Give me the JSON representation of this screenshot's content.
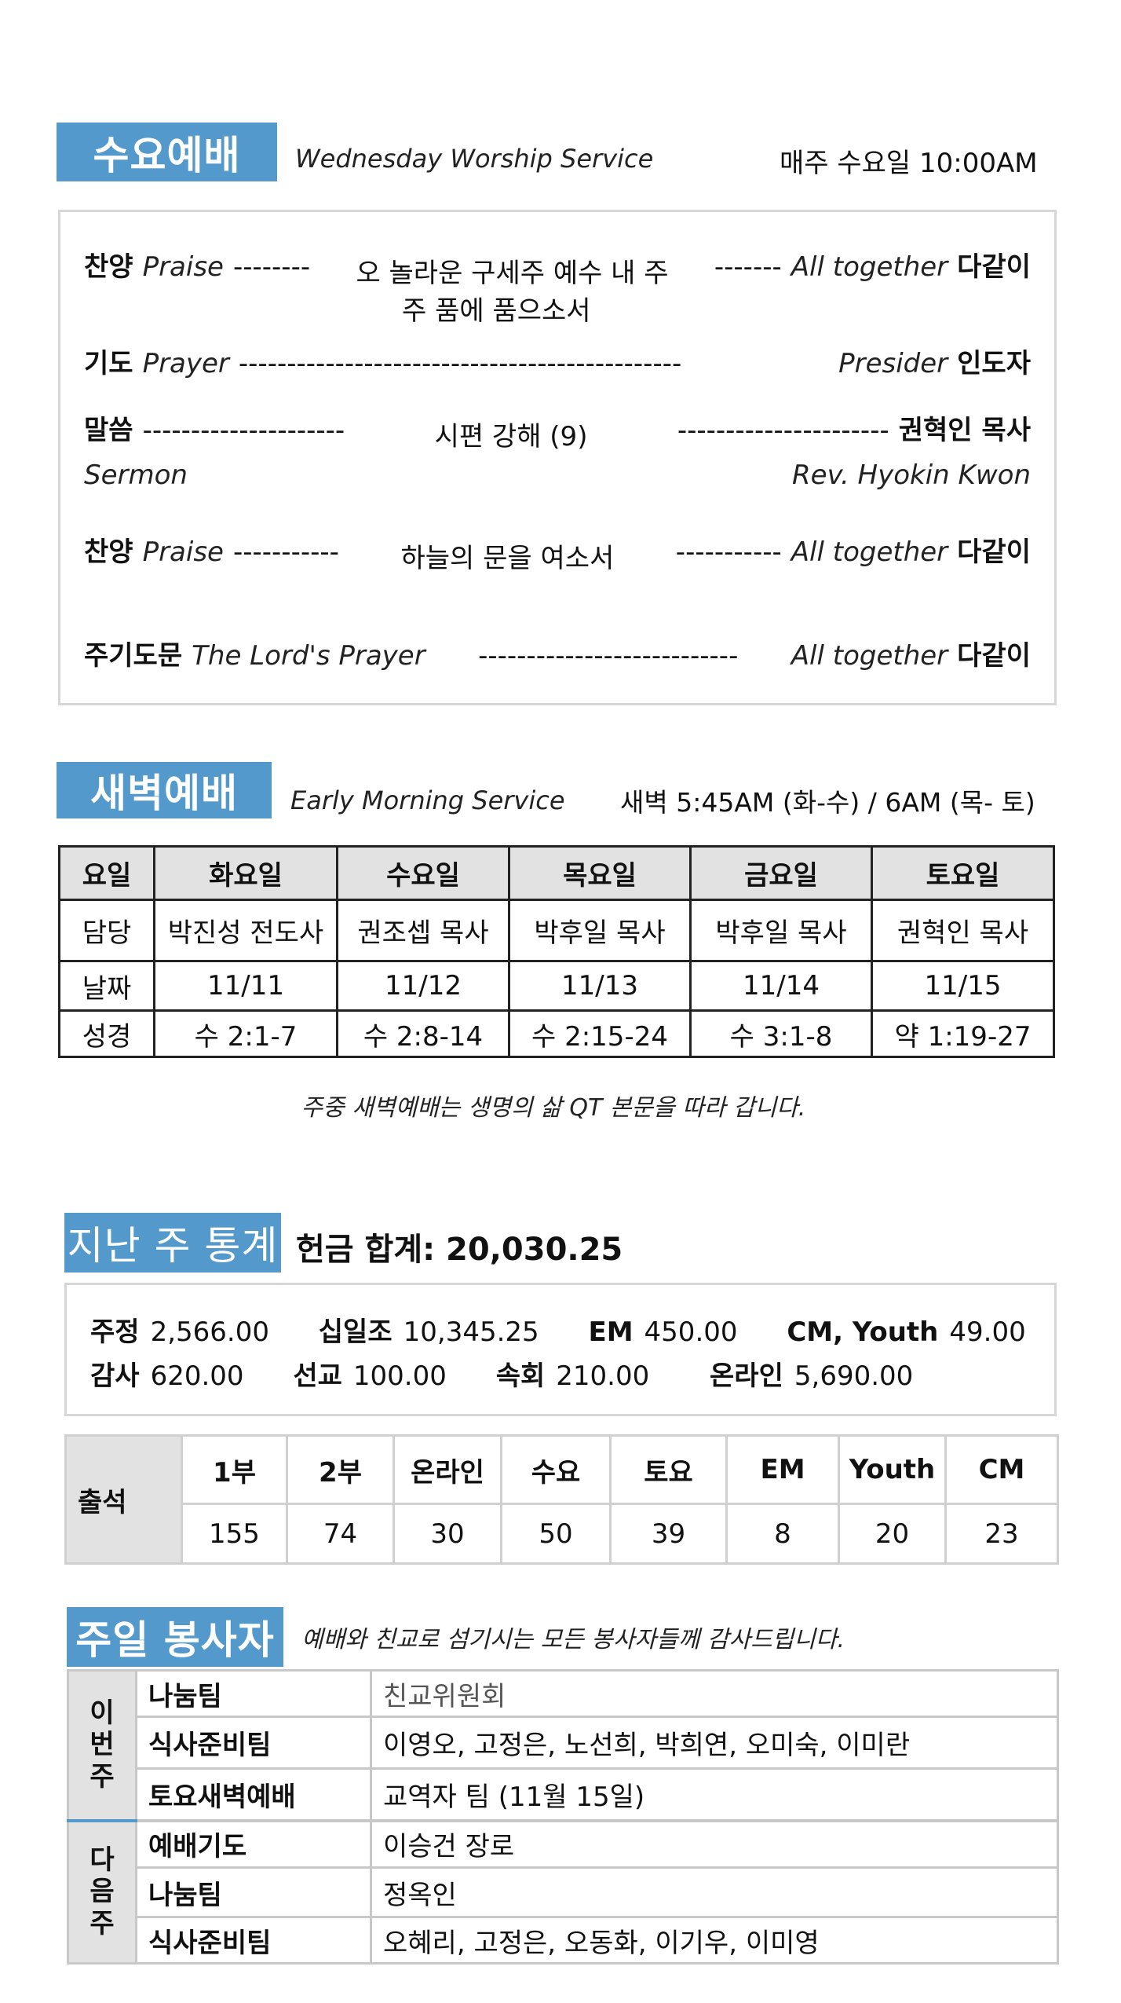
{
  "wednesday": {
    "title": "수요예배",
    "subtitle": "Wednesday Worship Service",
    "time": "매주 수요일 10:00AM",
    "items": [
      {
        "ko": "찬양",
        "en": "Praise",
        "d1": "--------",
        "content": "오 놀라운 구세주 예수 내 주",
        "content2": "주 품에 품으소서",
        "d2": "-------",
        "who_en": "All  together",
        "who_ko": "다같이"
      },
      {
        "ko": "기도",
        "en": "Prayer",
        "d1": "----------------------------------------------",
        "who_en": "Presider",
        "who_ko": "인도자"
      },
      {
        "ko": "말씀",
        "d1": "---------------------",
        "content": "시편 강해 (9)",
        "d2": "----------------------",
        "who_ko": "권혁인 목사",
        "en2": "Sermon",
        "who_en2": "Rev. Hyokin Kwon"
      },
      {
        "ko": "찬양",
        "en": "Praise",
        "d1": "-----------",
        "content": "하늘의 문을 여소서",
        "d2": "-----------",
        "who_en": "All together",
        "who_ko": "다같이"
      },
      {
        "ko": "주기도문",
        "en": "The Lord's Prayer",
        "d1": "---------------------------",
        "who_en": "All together",
        "who_ko": "다같이"
      }
    ]
  },
  "early": {
    "title": "새벽예배",
    "subtitle": "Early Morning Service",
    "time": "새벽 5:45AM (화-수) / 6AM (목- 토)",
    "headers": [
      "요일",
      "화요일",
      "수요일",
      "목요일",
      "금요일",
      "토요일"
    ],
    "rows": [
      [
        "담당",
        "박진성 전도사",
        "권조셉 목사",
        "박후일 목사",
        "박후일 목사",
        "권혁인 목사"
      ],
      [
        "날짜",
        "11/11",
        "11/12",
        "11/13",
        "11/14",
        "11/15"
      ],
      [
        "성경",
        "수 2:1-7",
        "수 2:8-14",
        "수 2:15-24",
        "수 3:1-8",
        "약 1:19-27"
      ]
    ],
    "note": "주중 새벽예배는 생명의 삶 QT 본문을  따라 갑니다."
  },
  "stats": {
    "title": "지난 주 통계",
    "total": "헌금 합계: 20,030.25",
    "line1": [
      {
        "label": "주정",
        "value": "2,566.00"
      },
      {
        "label": "십일조",
        "value": "10,345.25"
      },
      {
        "label": "EM",
        "value": "450.00"
      },
      {
        "label": "CM, Youth",
        "value": "49.00"
      }
    ],
    "line2": [
      {
        "label": "감사",
        "value": "620.00"
      },
      {
        "label": "선교",
        "value": "100.00"
      },
      {
        "label": "속회",
        "value": "210.00"
      },
      {
        "label": "온라인",
        "value": "5,690.00"
      }
    ],
    "attendance": {
      "label": "출석",
      "headers": [
        "1부",
        "2부",
        "온라인",
        "수요",
        "토요",
        "EM",
        "Youth",
        "CM"
      ],
      "values": [
        "155",
        "74",
        "30",
        "50",
        "39",
        "8",
        "20",
        "23"
      ]
    }
  },
  "volunteers": {
    "title": "주일 봉사자",
    "subtitle": "예배와 친교로 섬기시는 모든 봉사자들께 감사드립니다.",
    "this_week": {
      "label": "이\n번\n주",
      "rows": [
        {
          "role": "나눔팀",
          "names": "친교위원회"
        },
        {
          "role": "식사준비팀",
          "names": "이영오, 고정은, 노선희, 박희연, 오미숙, 이미란"
        },
        {
          "role": "토요새벽예배",
          "names": "교역자 팀 (11월 15일)"
        }
      ]
    },
    "next_week": {
      "label": "다\n음\n주",
      "rows": [
        {
          "role": "예배기도",
          "names": "이승건 장로"
        },
        {
          "role": "나눔팀",
          "names": "정옥인"
        },
        {
          "role": "식사준비팀",
          "names": "오혜리, 고정은, 오동화, 이기우, 이미영"
        }
      ]
    }
  },
  "colors": {
    "accent": "#5499cc",
    "header_cell": "#e2e2e2",
    "border": "#d6d6d6"
  }
}
